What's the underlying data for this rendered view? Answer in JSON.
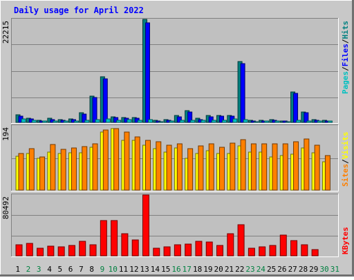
{
  "title": "Daily usage for April 2022",
  "colors": {
    "page_bg": "#c8c8c8",
    "plot_bg": "#c0c0c0",
    "title_color": "#0000ff",
    "hits": "#008080",
    "files": "#0000ff",
    "pages": "#00c0c0",
    "visits": "#ffff00",
    "sites": "#ff8000",
    "kbytes": "#ff0000",
    "weekday_label": "#000000",
    "weekend_label": "#008040"
  },
  "chart_data": [
    {
      "type": "bar",
      "panel": "top",
      "max_label": "22215",
      "ylim": [
        0,
        22215
      ],
      "legend": [
        {
          "text": "Pages",
          "color_key": "pages"
        },
        {
          "text": "/",
          "color_key": "sep"
        },
        {
          "text": "Files",
          "color_key": "files"
        },
        {
          "text": "/",
          "color_key": "sep"
        },
        {
          "text": "Hits",
          "color_key": "hits"
        }
      ],
      "categories": [
        "1",
        "2",
        "3",
        "4",
        "5",
        "6",
        "7",
        "8",
        "9",
        "10",
        "11",
        "12",
        "13",
        "14",
        "15",
        "16",
        "17",
        "18",
        "19",
        "20",
        "21",
        "22",
        "23",
        "24",
        "25",
        "26",
        "27",
        "28",
        "29",
        "30"
      ],
      "series": [
        {
          "name": "Hits",
          "values": [
            1600,
            850,
            450,
            850,
            600,
            750,
            2050,
            5650,
            9850,
            1250,
            1100,
            1100,
            22215,
            450,
            600,
            1450,
            2500,
            850,
            1450,
            1500,
            1500,
            13050,
            450,
            450,
            600,
            300,
            6550,
            2300,
            600,
            450
          ]
        },
        {
          "name": "Files",
          "values": [
            1400,
            700,
            350,
            650,
            450,
            600,
            1800,
            5400,
            9400,
            1100,
            900,
            900,
            21500,
            350,
            500,
            1200,
            2200,
            650,
            1200,
            1300,
            1300,
            12600,
            350,
            300,
            500,
            250,
            6300,
            2100,
            450,
            350
          ]
        },
        {
          "name": "Pages",
          "values": [
            700,
            450,
            250,
            350,
            300,
            300,
            400,
            600,
            800,
            500,
            600,
            500,
            600,
            200,
            300,
            400,
            500,
            400,
            500,
            500,
            700,
            600,
            200,
            250,
            300,
            200,
            500,
            300,
            250,
            250
          ]
        }
      ]
    },
    {
      "type": "bar",
      "panel": "middle",
      "max_label": "194",
      "ylim": [
        0,
        194
      ],
      "legend": [
        {
          "text": "Sites",
          "color_key": "sites"
        },
        {
          "text": "/",
          "color_key": "sep"
        },
        {
          "text": "Visits",
          "color_key": "visits"
        }
      ],
      "categories": [
        "1",
        "2",
        "3",
        "4",
        "5",
        "6",
        "7",
        "8",
        "9",
        "10",
        "11",
        "12",
        "13",
        "14",
        "15",
        "16",
        "17",
        "18",
        "19",
        "20",
        "21",
        "22",
        "23",
        "24",
        "25",
        "26",
        "27",
        "28",
        "29",
        "30"
      ],
      "series": [
        {
          "name": "Visits",
          "values": [
            103,
            110,
            95,
            115,
            110,
            112,
            112,
            130,
            176,
            186,
            150,
            150,
            135,
            125,
            115,
            128,
            95,
            110,
            118,
            110,
            110,
            133,
            115,
            115,
            100,
            105,
            108,
            128,
            112,
            85
          ]
        },
        {
          "name": "Sites",
          "values": [
            110,
            125,
            100,
            137,
            124,
            127,
            132,
            140,
            182,
            185,
            175,
            160,
            150,
            145,
            135,
            140,
            125,
            134,
            140,
            130,
            141,
            152,
            140,
            140,
            140,
            140,
            145,
            155,
            135,
            105
          ]
        }
      ]
    },
    {
      "type": "bar",
      "panel": "bottom",
      "max_label": "80492",
      "ylim": [
        0,
        80492
      ],
      "legend": [
        {
          "text": "KBytes",
          "color_key": "kbytes"
        }
      ],
      "categories": [
        "1",
        "2",
        "3",
        "4",
        "5",
        "6",
        "7",
        "8",
        "9",
        "10",
        "11",
        "12",
        "13",
        "14",
        "15",
        "16",
        "17",
        "18",
        "19",
        "20",
        "21",
        "22",
        "23",
        "24",
        "25",
        "26",
        "27",
        "28",
        "29",
        "30"
      ],
      "series": [
        {
          "name": "KBytes",
          "values": [
            15000,
            16500,
            10000,
            12500,
            12000,
            13500,
            19000,
            15000,
            47000,
            47000,
            29000,
            21000,
            80492,
            10000,
            12000,
            15000,
            15500,
            19000,
            18000,
            13500,
            29000,
            41000,
            10000,
            12000,
            13500,
            27000,
            20000,
            15000,
            8000,
            0
          ]
        }
      ]
    }
  ],
  "x_labels": [
    {
      "text": "1",
      "weekend": false
    },
    {
      "text": "2",
      "weekend": true
    },
    {
      "text": "3",
      "weekend": true
    },
    {
      "text": "4",
      "weekend": false
    },
    {
      "text": "5",
      "weekend": false
    },
    {
      "text": "6",
      "weekend": false
    },
    {
      "text": "7",
      "weekend": false
    },
    {
      "text": "8",
      "weekend": false
    },
    {
      "text": "9",
      "weekend": true
    },
    {
      "text": "10",
      "weekend": true
    },
    {
      "text": "11",
      "weekend": false
    },
    {
      "text": "12",
      "weekend": false
    },
    {
      "text": "13",
      "weekend": false
    },
    {
      "text": "14",
      "weekend": false
    },
    {
      "text": "15",
      "weekend": false
    },
    {
      "text": "16",
      "weekend": true
    },
    {
      "text": "17",
      "weekend": true
    },
    {
      "text": "18",
      "weekend": false
    },
    {
      "text": "19",
      "weekend": false
    },
    {
      "text": "20",
      "weekend": false
    },
    {
      "text": "21",
      "weekend": false
    },
    {
      "text": "22",
      "weekend": false
    },
    {
      "text": "23",
      "weekend": true
    },
    {
      "text": "24",
      "weekend": true
    },
    {
      "text": "25",
      "weekend": false
    },
    {
      "text": "26",
      "weekend": false
    },
    {
      "text": "27",
      "weekend": false
    },
    {
      "text": "28",
      "weekend": false
    },
    {
      "text": "29",
      "weekend": false
    },
    {
      "text": "30",
      "weekend": true
    },
    {
      "text": "31",
      "weekend": true
    }
  ]
}
